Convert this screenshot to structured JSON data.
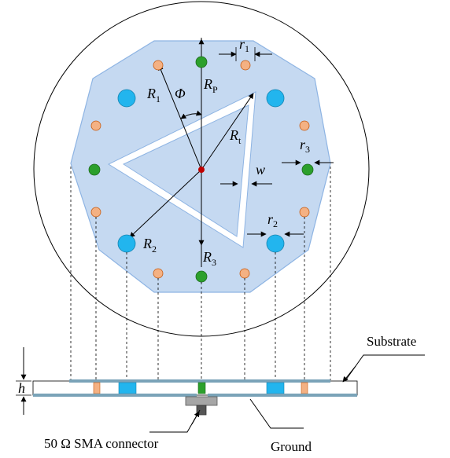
{
  "labels": {
    "r1": {
      "main": "r",
      "sub": "1"
    },
    "r2": {
      "main": "r",
      "sub": "2"
    },
    "r3": {
      "main": "r",
      "sub": "3"
    },
    "R1": {
      "main": "R",
      "sub": "1"
    },
    "R2": {
      "main": "R",
      "sub": "2"
    },
    "R3": {
      "main": "R",
      "sub": "3"
    },
    "RP": {
      "main": "R",
      "sub": "P"
    },
    "Rt": {
      "main": "R",
      "sub": "t"
    },
    "phi": "Φ",
    "w": "w",
    "h": "h",
    "substrate": "Substrate",
    "ground": "Ground",
    "connector": "50 Ω  SMA connector"
  },
  "colors": {
    "patch_fill": "#c5d9f1",
    "patch_stroke": "#8eb4e3",
    "via_orange": "#f4b183",
    "via_green": "#2ca02c",
    "via_blue": "#22b5ee",
    "feed_red": "#c00000",
    "substrate_line": "#7aa3b8",
    "connector_gray": "#a6a6a6"
  }
}
